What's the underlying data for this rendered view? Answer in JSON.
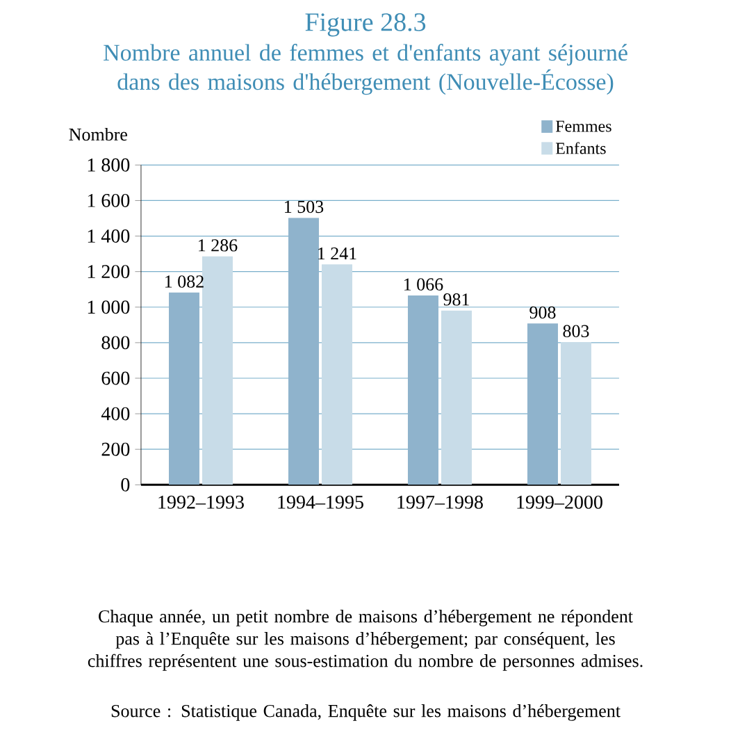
{
  "chart_data": {
    "type": "bar",
    "title": "Figure 28.3",
    "subtitle": "Nombre annuel de femmes et d'enfants ayant séjourné dans des maisons d'hébergement (Nouvelle-Écosse)",
    "ylabel": "Nombre",
    "categories": [
      "1992–1993",
      "1994–1995",
      "1997–1998",
      "1999–2000"
    ],
    "series": [
      {
        "name": "Femmes",
        "color": "#8fb3cc",
        "values": [
          1082,
          1503,
          1066,
          908
        ],
        "value_labels": [
          "1 082",
          "1 503",
          "1 066",
          "908"
        ]
      },
      {
        "name": "Enfants",
        "color": "#c8dce8",
        "values": [
          1286,
          1241,
          981,
          803
        ],
        "value_labels": [
          "1 286",
          "1 241",
          "981",
          "803"
        ]
      }
    ],
    "ylim": [
      0,
      1800
    ],
    "yticks": [
      0,
      200,
      400,
      600,
      800,
      {
        "value": 1000,
        "label": "1 000"
      },
      {
        "value": 1200,
        "label": "1 200"
      },
      {
        "value": 1400,
        "label": "1 400"
      },
      {
        "value": 1600,
        "label": "1 600"
      },
      {
        "value": 1800,
        "label": "1 800"
      }
    ],
    "grid": "y",
    "legend": "top right",
    "annotations": [
      "Chaque année, un petit nombre de maisons d’hébergement ne répondent pas à l’Enquête sur les maisons d’hébergement; par conséquent, les chiffres représentent une sous-estimation du nombre de personnes admises.",
      "Source : Statistique Canada, Enquête sur les maisons d’hébergement"
    ]
  }
}
